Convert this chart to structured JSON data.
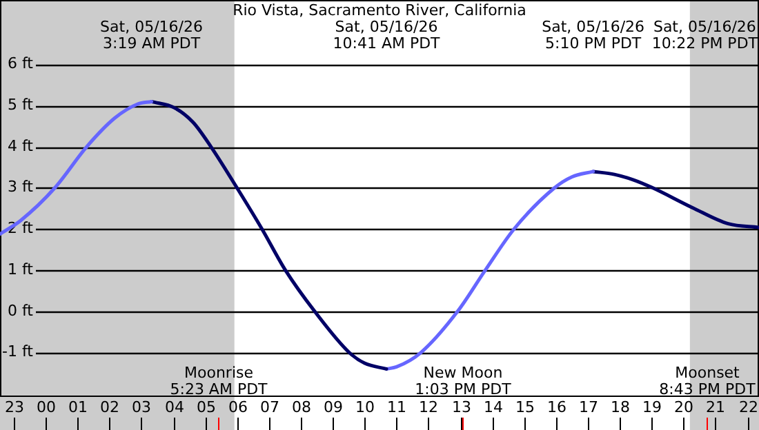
{
  "chart_data": {
    "type": "line",
    "title": "Rio Vista, Sacramento River, California",
    "xlim": [
      "--05-15T22:34",
      "--05-16T22:22"
    ],
    "ylim": [
      -2.08,
      7.57
    ],
    "xticks": [
      {
        "value": "--05-15T23:00",
        "label": "23"
      },
      {
        "value": "--05-16T00:00",
        "label": "00"
      },
      {
        "value": "--05-16T01:00",
        "label": "01"
      },
      {
        "value": "--05-16T02:00",
        "label": "02"
      },
      {
        "value": "--05-16T03:00",
        "label": "03"
      },
      {
        "value": "--05-16T04:00",
        "label": "04"
      },
      {
        "value": "--05-16T05:00",
        "label": "05"
      },
      {
        "value": "--05-16T06:00",
        "label": "06"
      },
      {
        "value": "--05-16T07:00",
        "label": "07"
      },
      {
        "value": "--05-16T08:00",
        "label": "08"
      },
      {
        "value": "--05-16T09:00",
        "label": "09"
      },
      {
        "value": "--05-16T10:00",
        "label": "10"
      },
      {
        "value": "--05-16T11:00",
        "label": "11"
      },
      {
        "value": "--05-16T12:00",
        "label": "12"
      },
      {
        "value": "--05-16T13:00",
        "label": "13"
      },
      {
        "value": "--05-16T14:00",
        "label": "14"
      },
      {
        "value": "--05-16T15:00",
        "label": "15"
      },
      {
        "value": "--05-16T16:00",
        "label": "16"
      },
      {
        "value": "--05-16T17:00",
        "label": "17"
      },
      {
        "value": "--05-16T18:00",
        "label": "18"
      },
      {
        "value": "--05-16T19:00",
        "label": "19"
      },
      {
        "value": "--05-16T20:00",
        "label": "20"
      },
      {
        "value": "--05-16T21:00",
        "label": "21"
      },
      {
        "value": "--05-16T22:00",
        "label": "22"
      }
    ],
    "yticks": [
      {
        "value": -1,
        "label": "-1 ft"
      },
      {
        "value": 0,
        "label": "0 ft"
      },
      {
        "value": 1,
        "label": "1 ft"
      },
      {
        "value": 2,
        "label": "2 ft"
      },
      {
        "value": 3,
        "label": "3 ft"
      },
      {
        "value": 4,
        "label": "4 ft"
      },
      {
        "value": 5,
        "label": "5 ft"
      },
      {
        "value": 6,
        "label": "6 ft"
      }
    ],
    "series": [
      {
        "color": "#6666ff",
        "x": [
          "--05-15T22:34",
          "--05-15T23:13",
          "--05-16T00:17",
          "--05-16T01:17",
          "--05-16T02:10",
          "--05-16T02:53",
          "--05-16T03:19"
        ],
        "values": [
          1.88,
          2.21,
          3.0,
          4.0,
          4.7,
          5.04,
          5.1
        ]
      },
      {
        "color": "#000066",
        "x": [
          "--05-16T03:19",
          "--05-16T04:02",
          "--05-16T04:37",
          "--05-16T05:11",
          "--05-16T06:00",
          "--05-16T06:47",
          "--05-16T07:31",
          "--05-16T08:26",
          "--05-16T09:31",
          "--05-16T10:00",
          "--05-16T10:41"
        ],
        "values": [
          5.1,
          4.95,
          4.6,
          4.0,
          3.0,
          2.0,
          1.0,
          0,
          -1.0,
          -1.26,
          -1.4
        ]
      },
      {
        "color": "#6666ff",
        "x": [
          "--05-16T10:41",
          "--05-16T11:00",
          "--05-16T11:46",
          "--05-16T12:55",
          "--05-16T13:47",
          "--05-16T14:41",
          "--05-16T15:57",
          "--05-16T16:30",
          "--05-16T17:10"
        ],
        "values": [
          -1.4,
          -1.35,
          -1.0,
          0,
          1.0,
          2.0,
          3.0,
          3.27,
          3.4
        ]
      },
      {
        "color": "#000066",
        "x": [
          "--05-16T17:10",
          "--05-16T17:50",
          "--05-16T18:25",
          "--05-16T18:59",
          "--05-16T20:17",
          "--05-16T21:24",
          "--05-16T22:22"
        ],
        "values": [
          3.4,
          3.33,
          3.2,
          3.02,
          2.52,
          2.13,
          2.04
        ]
      }
    ],
    "annotations": [
      "Sat, 05/16/26\n3:19 AM PDT",
      "Sat, 05/16/26\n10:41 AM PDT",
      "Sat, 05/16/26\n5:10 PM PDT",
      "Sat, 05/16/26\n10:22 PM PDT"
    ],
    "ref_lines": [
      {
        "axis": "x",
        "value": "--05-16T05:23",
        "label": "Moonrise\n5:23 AM PDT",
        "color": "#ff0000"
      },
      {
        "axis": "x",
        "value": "--05-16T13:03",
        "label": "New Moon\n1:03 PM PDT",
        "color": "#ff0000"
      },
      {
        "axis": "x",
        "value": "--05-16T20:43",
        "label": "Moonset\n8:43 PM PDT",
        "color": "#ff0000"
      }
    ],
    "bands": [
      {
        "axis": "x",
        "from": "--05-15T22:34",
        "to": "--05-16T05:55",
        "color": "#cccccc"
      },
      {
        "axis": "x",
        "from": "--05-16T20:12",
        "to": "--05-16T22:22",
        "color": "#cccccc"
      }
    ],
    "grid": "y",
    "legend": false,
    "marker": "none",
    "line_style": "solid"
  }
}
